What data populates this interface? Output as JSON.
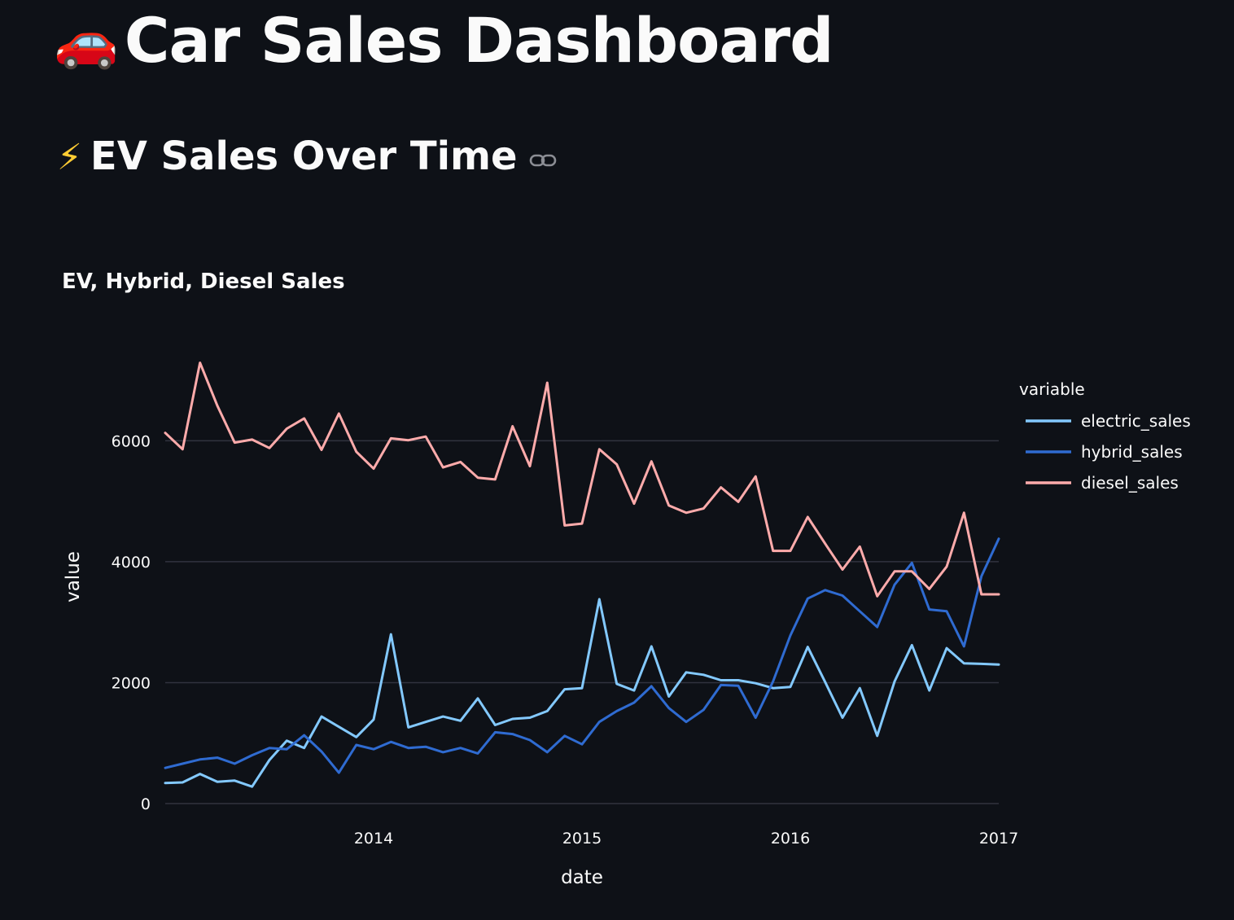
{
  "header": {
    "title_emoji": "🚗",
    "title": "Car Sales Dashboard"
  },
  "section": {
    "emoji": "⚡",
    "heading": "EV Sales Over Time",
    "anchor_icon": "link-icon"
  },
  "colors": {
    "background": "#0e1117",
    "gridline": "#31333f",
    "electric_sales": "#83c9ff",
    "hybrid_sales": "#2f6bd1",
    "diesel_sales": "#ffabab"
  },
  "chart_data": {
    "type": "line",
    "title": "EV, Hybrid, Diesel Sales",
    "xlabel": "date",
    "ylabel": "value",
    "legend_title": "variable",
    "legend_position": "right",
    "grid": "horizontal",
    "xlim": [
      "2013-01",
      "2017-01"
    ],
    "ylim": [
      0,
      7500
    ],
    "x_ticks": [
      "2014",
      "2015",
      "2016",
      "2017"
    ],
    "y_ticks": [
      0,
      2000,
      4000,
      6000
    ],
    "x": [
      "2013-01",
      "2013-02",
      "2013-03",
      "2013-04",
      "2013-05",
      "2013-06",
      "2013-07",
      "2013-08",
      "2013-09",
      "2013-10",
      "2013-11",
      "2013-12",
      "2014-01",
      "2014-02",
      "2014-03",
      "2014-04",
      "2014-05",
      "2014-06",
      "2014-07",
      "2014-08",
      "2014-09",
      "2014-10",
      "2014-11",
      "2014-12",
      "2015-01",
      "2015-02",
      "2015-03",
      "2015-04",
      "2015-05",
      "2015-06",
      "2015-07",
      "2015-08",
      "2015-09",
      "2015-10",
      "2015-11",
      "2015-12",
      "2016-01",
      "2016-02",
      "2016-03",
      "2016-04",
      "2016-05",
      "2016-06",
      "2016-07",
      "2016-08",
      "2016-09",
      "2016-10",
      "2016-11",
      "2016-12",
      "2017-01"
    ],
    "series": [
      {
        "name": "electric_sales",
        "values": [
          340,
          350,
          490,
          360,
          380,
          280,
          720,
          1040,
          920,
          1440,
          1270,
          1100,
          1390,
          2800,
          1260,
          1350,
          1440,
          1370,
          1740,
          1300,
          1400,
          1420,
          1530,
          1890,
          1910,
          3380,
          1980,
          1870,
          2600,
          1770,
          2170,
          2130,
          2040,
          2040,
          1990,
          1910,
          1930,
          2590,
          2010,
          1420,
          1910,
          1120,
          2020,
          2620,
          1870,
          2570,
          2320,
          2310,
          2300
        ]
      },
      {
        "name": "hybrid_sales",
        "values": [
          590,
          660,
          730,
          760,
          660,
          800,
          920,
          900,
          1130,
          860,
          510,
          970,
          900,
          1020,
          920,
          940,
          850,
          920,
          830,
          1180,
          1150,
          1050,
          850,
          1120,
          980,
          1350,
          1530,
          1670,
          1940,
          1580,
          1350,
          1550,
          1960,
          1950,
          1420,
          2020,
          2780,
          3390,
          3530,
          3440,
          3180,
          2920,
          3620,
          3980,
          3210,
          3180,
          2600,
          3760,
          4380
        ]
      },
      {
        "name": "diesel_sales",
        "values": [
          6130,
          5860,
          7290,
          6580,
          5970,
          6020,
          5880,
          6200,
          6370,
          5850,
          6450,
          5820,
          5540,
          6040,
          6010,
          6070,
          5560,
          5650,
          5390,
          5360,
          6240,
          5580,
          6960,
          4600,
          4630,
          5860,
          5610,
          4960,
          5660,
          4930,
          4810,
          4880,
          5230,
          4990,
          5410,
          4180,
          4180,
          4740,
          4300,
          3870,
          4250,
          3430,
          3840,
          3840,
          3550,
          3920,
          4810,
          3460,
          3460
        ]
      }
    ]
  }
}
